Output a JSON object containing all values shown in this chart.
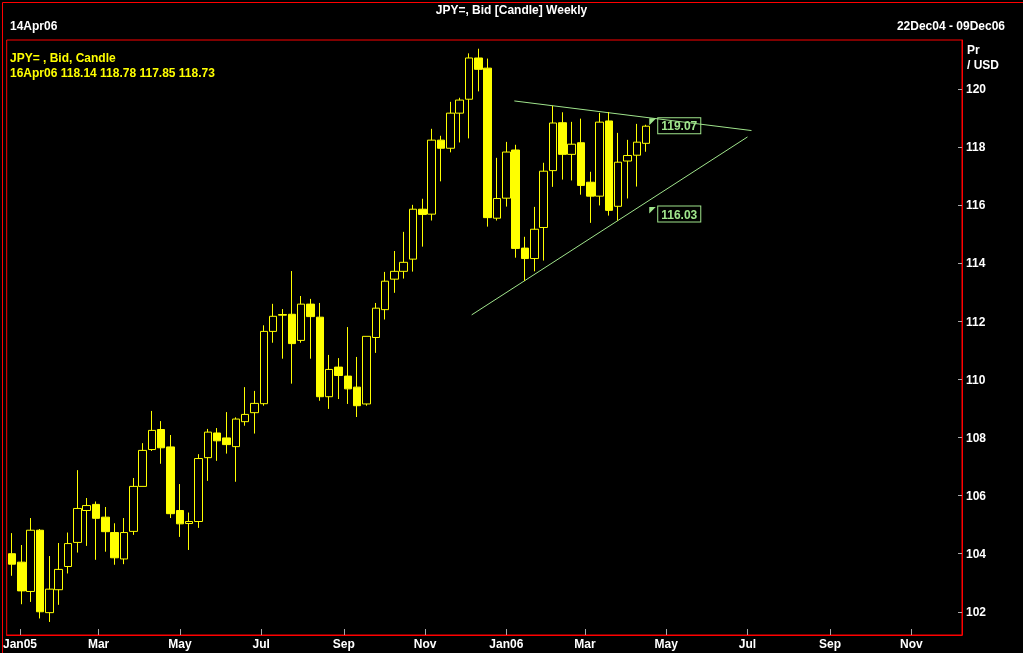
{
  "chart_data": {
    "type": "candlestick",
    "title": "JPY=, Bid [Candle] Weekly",
    "ylabel": "Pr\n/ USD",
    "annotations": [
      "14Apr06",
      "22Dec04 - 09Dec06",
      "JPY= , Bid, Candle",
      "16Apr06 118.14 118.78 117.85 118.73",
      {
        "text": "119.07",
        "x": "2006-04-16",
        "y": 119.07
      },
      {
        "text": "116.03",
        "x": "2006-04-16",
        "y": 116.03
      }
    ],
    "color": "#ffff00",
    "x": [
      "2004-12-26",
      "2005-01-02",
      "2005-01-09",
      "2005-01-16",
      "2005-01-23",
      "2005-01-30",
      "2005-02-06",
      "2005-02-13",
      "2005-02-20",
      "2005-02-27",
      "2005-03-06",
      "2005-03-13",
      "2005-03-20",
      "2005-03-27",
      "2005-04-03",
      "2005-04-10",
      "2005-04-17",
      "2005-04-24",
      "2005-05-01",
      "2005-05-08",
      "2005-05-15",
      "2005-05-22",
      "2005-05-29",
      "2005-06-05",
      "2005-06-12",
      "2005-06-19",
      "2005-06-26",
      "2005-07-03",
      "2005-07-10",
      "2005-07-17",
      "2005-07-24",
      "2005-07-31",
      "2005-08-07",
      "2005-08-14",
      "2005-08-21",
      "2005-08-28",
      "2005-09-04",
      "2005-09-11",
      "2005-09-18",
      "2005-09-25",
      "2005-10-02",
      "2005-10-09",
      "2005-10-16",
      "2005-10-23",
      "2005-10-30",
      "2005-11-06",
      "2005-11-13",
      "2005-11-20",
      "2005-11-27",
      "2005-12-04",
      "2005-12-11",
      "2005-12-18",
      "2005-12-25",
      "2006-01-01",
      "2006-01-08",
      "2006-01-15",
      "2006-01-22",
      "2006-01-29",
      "2006-02-05",
      "2006-02-12",
      "2006-02-19",
      "2006-02-26",
      "2006-03-05",
      "2006-03-12",
      "2006-03-19",
      "2006-03-26",
      "2006-04-02",
      "2006-04-09",
      "2006-04-16"
    ],
    "ohlc": [
      [
        104.0,
        104.71,
        103.24,
        103.64
      ],
      [
        103.71,
        104.3,
        102.26,
        102.72
      ],
      [
        102.7,
        105.23,
        102.34,
        104.81
      ],
      [
        104.81,
        104.85,
        101.77,
        102.0
      ],
      [
        101.97,
        103.92,
        101.65,
        102.78
      ],
      [
        102.76,
        104.37,
        102.24,
        103.46
      ],
      [
        103.56,
        104.73,
        103.32,
        104.35
      ],
      [
        104.39,
        106.88,
        104.04,
        105.56
      ],
      [
        105.49,
        105.92,
        104.27,
        105.66
      ],
      [
        105.7,
        105.8,
        103.79,
        105.22
      ],
      [
        105.26,
        105.61,
        104.07,
        104.76
      ],
      [
        104.73,
        105.05,
        103.62,
        103.86
      ],
      [
        103.82,
        105.23,
        103.64,
        104.73
      ],
      [
        104.77,
        106.61,
        104.65,
        106.32
      ],
      [
        106.32,
        107.81,
        106.32,
        107.56
      ],
      [
        107.59,
        108.92,
        107.54,
        108.25
      ],
      [
        108.28,
        108.57,
        107.1,
        107.65
      ],
      [
        107.68,
        108.09,
        105.23,
        105.38
      ],
      [
        105.49,
        106.4,
        104.58,
        105.03
      ],
      [
        105.04,
        105.42,
        104.13,
        105.11
      ],
      [
        105.11,
        107.43,
        104.89,
        107.28
      ],
      [
        107.31,
        108.3,
        106.51,
        108.19
      ],
      [
        108.16,
        108.33,
        107.2,
        107.89
      ],
      [
        107.99,
        108.88,
        107.45,
        107.76
      ],
      [
        107.69,
        108.7,
        106.48,
        108.64
      ],
      [
        108.55,
        109.74,
        108.41,
        108.8
      ],
      [
        108.86,
        109.61,
        108.14,
        109.18
      ],
      [
        109.17,
        111.87,
        109.1,
        111.66
      ],
      [
        111.66,
        112.61,
        111.27,
        112.18
      ],
      [
        112.24,
        112.43,
        110.72,
        112.22
      ],
      [
        112.25,
        113.74,
        109.86,
        111.24
      ],
      [
        111.35,
        112.88,
        111.27,
        112.6
      ],
      [
        112.6,
        112.78,
        110.72,
        112.17
      ],
      [
        112.15,
        112.64,
        109.27,
        109.41
      ],
      [
        109.41,
        110.85,
        108.99,
        110.35
      ],
      [
        110.43,
        110.74,
        109.33,
        110.14
      ],
      [
        110.12,
        111.81,
        109.16,
        109.68
      ],
      [
        109.74,
        110.78,
        108.71,
        109.1
      ],
      [
        109.16,
        111.49,
        109.1,
        111.49
      ],
      [
        111.45,
        112.64,
        110.92,
        112.46
      ],
      [
        112.41,
        113.71,
        112.07,
        113.39
      ],
      [
        113.46,
        114.43,
        112.99,
        113.73
      ],
      [
        113.73,
        115.09,
        113.48,
        114.04
      ],
      [
        114.15,
        116.02,
        113.72,
        115.87
      ],
      [
        115.87,
        116.23,
        114.58,
        115.69
      ],
      [
        115.7,
        118.64,
        115.48,
        118.25
      ],
      [
        118.25,
        118.4,
        116.83,
        117.97
      ],
      [
        117.97,
        119.57,
        117.83,
        119.18
      ],
      [
        119.18,
        119.71,
        118.17,
        119.63
      ],
      [
        119.66,
        121.24,
        118.31,
        121.08
      ],
      [
        121.08,
        121.4,
        119.93,
        120.69
      ],
      [
        120.73,
        121.06,
        115.27,
        115.58
      ],
      [
        115.56,
        117.64,
        115.48,
        116.24
      ],
      [
        116.25,
        118.19,
        115.96,
        117.84
      ],
      [
        117.91,
        118.09,
        114.2,
        114.52
      ],
      [
        114.53,
        114.92,
        113.4,
        114.17
      ],
      [
        114.17,
        115.95,
        113.73,
        115.18
      ],
      [
        115.24,
        117.47,
        114.1,
        117.18
      ],
      [
        117.2,
        119.43,
        116.64,
        118.84
      ],
      [
        118.85,
        119.21,
        116.89,
        117.76
      ],
      [
        117.76,
        118.88,
        116.86,
        118.11
      ],
      [
        118.16,
        118.99,
        116.37,
        116.69
      ],
      [
        116.8,
        117.16,
        115.4,
        116.32
      ],
      [
        116.32,
        119.19,
        116.0,
        118.87
      ],
      [
        118.91,
        119.22,
        115.65,
        115.83
      ],
      [
        115.97,
        118.5,
        115.48,
        117.49
      ],
      [
        117.53,
        118.26,
        116.24,
        117.72
      ],
      [
        117.73,
        118.81,
        116.65,
        118.18
      ],
      [
        118.14,
        118.78,
        117.85,
        118.73
      ]
    ],
    "series": [
      {
        "type": "line",
        "color": "#a0e58c",
        "x": [
          "2006-01-07",
          "2006-07-04"
        ],
        "values": [
          119.6,
          118.58
        ]
      },
      {
        "type": "line",
        "color": "#a0e58c",
        "x": [
          "2005-12-06",
          "2006-07-01"
        ],
        "values": [
          112.23,
          118.36
        ]
      }
    ],
    "xlim": [
      "2004-12-22",
      "2006-12-09"
    ],
    "xticks": [
      {
        "value": "2005-01-01",
        "label": "Jan05"
      },
      {
        "value": "2005-03-01",
        "label": "Mar"
      },
      {
        "value": "2005-05-01",
        "label": "May"
      },
      {
        "value": "2005-07-01",
        "label": "Jul"
      },
      {
        "value": "2005-09-01",
        "label": "Sep"
      },
      {
        "value": "2005-11-01",
        "label": "Nov"
      },
      {
        "value": "2006-01-01",
        "label": "Jan06"
      },
      {
        "value": "2006-03-01",
        "label": "Mar"
      },
      {
        "value": "2006-05-01",
        "label": "May"
      },
      {
        "value": "2006-07-01",
        "label": "Jul"
      },
      {
        "value": "2006-09-01",
        "label": "Sep"
      },
      {
        "value": "2006-11-01",
        "label": "Nov"
      }
    ],
    "ylim": [
      101.2,
      121.7
    ],
    "yticks": [
      102,
      104,
      106,
      108,
      110,
      112,
      114,
      116,
      118,
      120
    ],
    "grid": false
  }
}
